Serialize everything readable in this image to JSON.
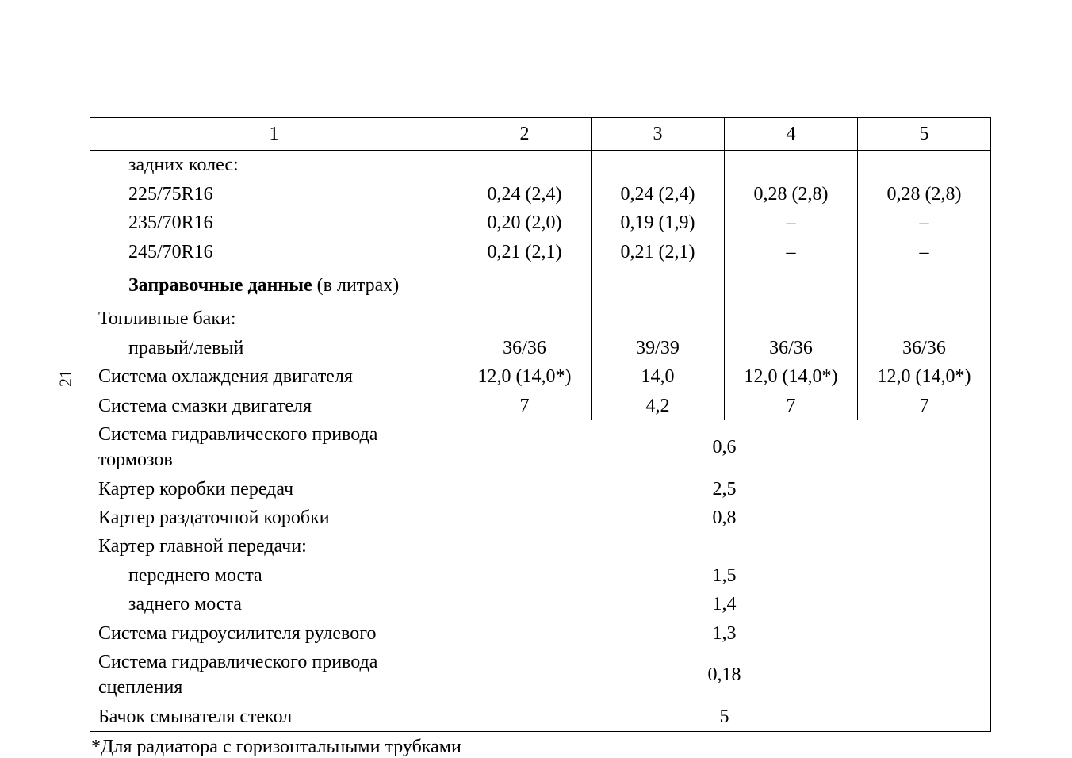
{
  "page_number": "21",
  "columns": {
    "c1": "1",
    "c2": "2",
    "c3": "3",
    "c4": "4",
    "c5": "5"
  },
  "rows": {
    "rear_wheels_header": "задних колес:",
    "tire1_label": "225/75R16",
    "tire1": {
      "c2": "0,24 (2,4)",
      "c3": "0,24 (2,4)",
      "c4": "0,28 (2,8)",
      "c5": "0,28 (2,8)"
    },
    "tire2_label": "235/70R16",
    "tire2": {
      "c2": "0,20 (2,0)",
      "c3": "0,19 (1,9)",
      "c4": "–",
      "c5": "–"
    },
    "tire3_label": "245/70R16",
    "tire3": {
      "c2": "0,21 (2,1)",
      "c3": "0,21 (2,1)",
      "c4": "–",
      "c5": "–"
    },
    "fill_heading_bold": "Заправочные данные",
    "fill_heading_rest": " (в литрах)",
    "fuel_tanks_header": "Топливные баки:",
    "fuel_rl_label": "правый/левый",
    "fuel_rl": {
      "c2": "36/36",
      "c3": "39/39",
      "c4": "36/36",
      "c5": "36/36"
    },
    "cooling_label": "Система охлаждения двигателя",
    "cooling": {
      "c2": "12,0 (14,0*)",
      "c3": "14,0",
      "c4": "12,0 (14,0*)",
      "c5": "12,0 (14,0*)"
    },
    "lube_label": "Система смазки двигателя",
    "lube": {
      "c2": "7",
      "c3": "4,2",
      "c4": "7",
      "c5": "7"
    },
    "brake_hyd_label": "Система гидравлического привода тормозов",
    "brake_hyd_val": "0,6",
    "gearbox_label": "Картер коробки передач",
    "gearbox_val": "2,5",
    "transfer_label": "Картер раздаточной коробки",
    "transfer_val": "0,8",
    "final_drive_header": "Картер главной передачи:",
    "front_axle_label": "переднего моста",
    "front_axle_val": "1,5",
    "rear_axle_label": "заднего моста",
    "rear_axle_val": "1,4",
    "steering_label": "Система гидроусилителя рулевого",
    "steering_val": "1,3",
    "clutch_label": "Система гидравлического привода сцепления",
    "clutch_val": "0,18",
    "washer_label": "Бачок смывателя стекол",
    "washer_val": "5"
  },
  "footnote": "*Для радиатора с горизонтальными трубками"
}
